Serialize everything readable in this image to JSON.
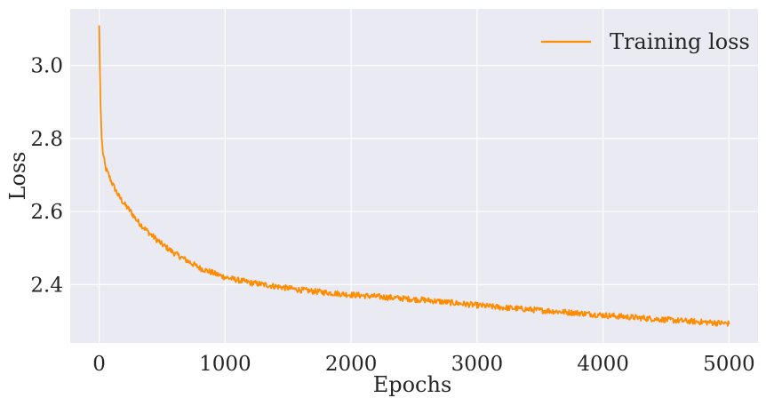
{
  "chart_data": {
    "type": "line",
    "title": "",
    "xlabel": "Epochs",
    "ylabel": "Loss",
    "xlim": [
      -230,
      5230
    ],
    "ylim": [
      2.24,
      3.155
    ],
    "x_ticks": [
      0,
      1000,
      2000,
      3000,
      4000,
      5000
    ],
    "x_tick_labels": [
      "0",
      "1000",
      "2000",
      "3000",
      "4000",
      "5000"
    ],
    "y_ticks": [
      2.4,
      2.6,
      2.8,
      3.0
    ],
    "y_tick_labels": [
      "2.4",
      "2.6",
      "2.8",
      "3.0"
    ],
    "grid": true,
    "legend_position": "top-right",
    "background": "#eaeaf2",
    "grid_color": "#ffffff",
    "series": [
      {
        "name": "Training loss",
        "color": "#ff8c00",
        "noise_amplitude": 0.008,
        "x": [
          0,
          5,
          10,
          20,
          30,
          40,
          50,
          75,
          100,
          150,
          200,
          250,
          300,
          400,
          500,
          600,
          700,
          800,
          900,
          1000,
          1100,
          1200,
          1300,
          1400,
          1500,
          1600,
          1800,
          2000,
          2200,
          2400,
          2600,
          2800,
          3000,
          3200,
          3400,
          3600,
          3800,
          4000,
          4200,
          4400,
          4600,
          4800,
          5000
        ],
        "y": [
          3.11,
          3.0,
          2.9,
          2.8,
          2.76,
          2.74,
          2.72,
          2.7,
          2.68,
          2.645,
          2.62,
          2.6,
          2.575,
          2.54,
          2.51,
          2.485,
          2.465,
          2.445,
          2.432,
          2.42,
          2.412,
          2.405,
          2.4,
          2.395,
          2.39,
          2.385,
          2.378,
          2.372,
          2.367,
          2.362,
          2.357,
          2.35,
          2.343,
          2.337,
          2.332,
          2.327,
          2.322,
          2.316,
          2.311,
          2.306,
          2.301,
          2.297,
          2.293
        ]
      }
    ]
  }
}
